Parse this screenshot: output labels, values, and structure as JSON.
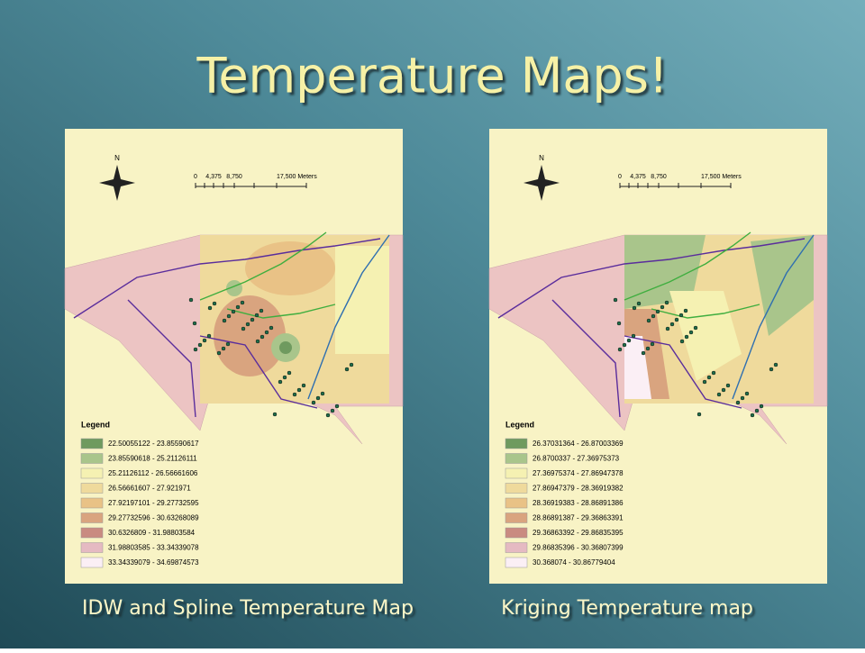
{
  "title": "Temperature Maps!",
  "maps": [
    {
      "caption": "IDW and Spline Temperature Map",
      "north": "N",
      "scale": [
        "0",
        "4,375",
        "8,750",
        "17,500 Meters"
      ],
      "legend": {
        "title": "Legend",
        "items": [
          {
            "label": "22.50055122 - 23.85590617",
            "color": "#6f9a5f"
          },
          {
            "label": "23.85590618 - 25.21126111",
            "color": "#a9c58b"
          },
          {
            "label": "25.21126112 - 26.56661606",
            "color": "#f5f1b2"
          },
          {
            "label": "26.56661607 - 27.921971",
            "color": "#efda9c"
          },
          {
            "label": "27.92197101 - 29.27732595",
            "color": "#e9c286"
          },
          {
            "label": "29.27732596 - 30.63268089",
            "color": "#d9a47f"
          },
          {
            "label": "30.6326809 - 31.98803584",
            "color": "#c98b81"
          },
          {
            "label": "31.98803585 - 33.34339078",
            "color": "#e5bac2"
          },
          {
            "label": "33.34339079 - 34.69874573",
            "color": "#fbeff5"
          }
        ]
      }
    },
    {
      "caption": "Kriging Temperature map",
      "north": "N",
      "scale": [
        "0",
        "4,375",
        "8,750",
        "17,500 Meters"
      ],
      "legend": {
        "title": "Legend",
        "items": [
          {
            "label": "26.37031364 - 26.87003369",
            "color": "#6f9a5f"
          },
          {
            "label": "26.8700337 - 27.36975373",
            "color": "#a9c58b"
          },
          {
            "label": "27.36975374 - 27.86947378",
            "color": "#f5f1b2"
          },
          {
            "label": "27.86947379 - 28.36919382",
            "color": "#efda9c"
          },
          {
            "label": "28.36919383 - 28.86891386",
            "color": "#e9c286"
          },
          {
            "label": "28.86891387 - 29.36863391",
            "color": "#d9a47f"
          },
          {
            "label": "29.36863392 - 29.86835395",
            "color": "#c98b81"
          },
          {
            "label": "29.86835396 - 30.36807399",
            "color": "#e5bac2"
          },
          {
            "label": "30.368074 - 30.86779404",
            "color": "#fbeff5"
          }
        ]
      }
    }
  ]
}
